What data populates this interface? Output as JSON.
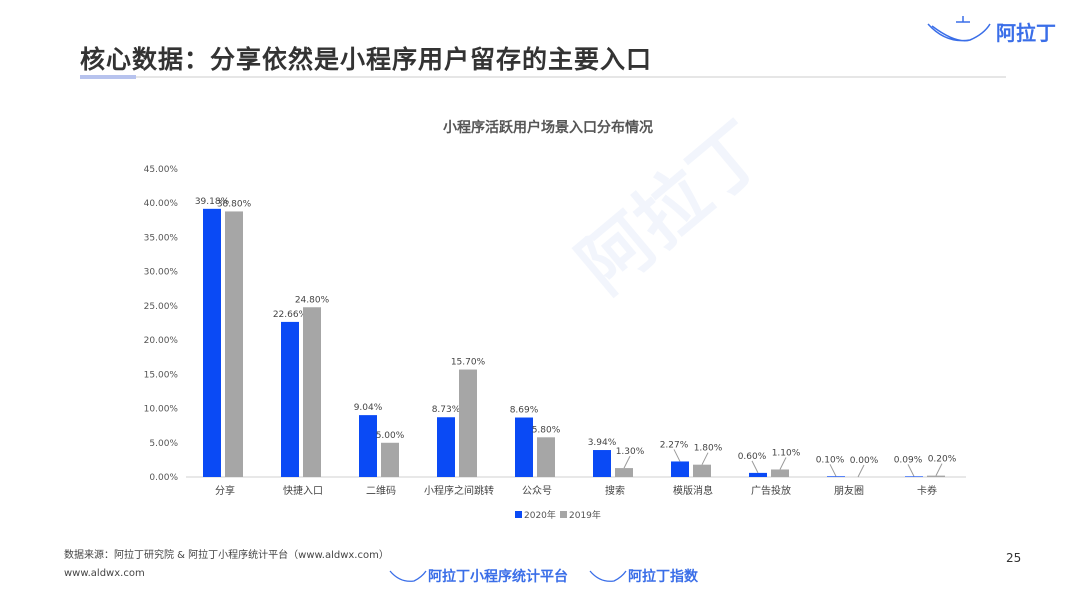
{
  "header": {
    "title": "核心数据：分享依然是小程序用户留存的主要入口",
    "logo_text": "阿拉丁"
  },
  "footer": {
    "source": "数据来源：阿拉丁研究院 & 阿拉丁小程序统计平台（www.aldwx.com）",
    "url": "www.aldwx.com",
    "page": "25",
    "logo1": "阿拉丁小程序统计平台",
    "logo2": "阿拉丁指数"
  },
  "colors": {
    "s2020": "#0a4af5",
    "s2019": "#a6a6a6"
  },
  "chart_data": {
    "type": "bar",
    "title": "小程序活跃用户场景入口分布情况",
    "categories": [
      "分享",
      "快捷入口",
      "二维码",
      "小程序之间跳转",
      "公众号",
      "搜索",
      "模版消息",
      "广告投放",
      "朋友圈",
      "卡券"
    ],
    "series": [
      {
        "name": "2020年",
        "values": [
          39.18,
          22.66,
          9.04,
          8.73,
          8.69,
          3.94,
          2.27,
          0.6,
          0.1,
          0.09
        ],
        "labels": [
          "39.18%",
          "22.66%",
          "9.04%",
          "8.73%",
          "8.69%",
          "3.94%",
          "2.27%",
          "0.60%",
          "0.10%",
          "0.09%"
        ]
      },
      {
        "name": "2019年",
        "values": [
          38.8,
          24.8,
          5.0,
          15.7,
          5.8,
          1.3,
          1.8,
          1.1,
          0.0,
          0.2
        ],
        "labels": [
          "38.80%",
          "24.80%",
          "5.00%",
          "15.70%",
          "5.80%",
          "1.30%",
          "1.80%",
          "1.10%",
          "0.00%",
          "0.20%"
        ]
      }
    ],
    "yticks": [
      "0.00%",
      "5.00%",
      "10.00%",
      "15.00%",
      "20.00%",
      "25.00%",
      "30.00%",
      "35.00%",
      "40.00%",
      "45.00%"
    ],
    "ylim": [
      0,
      45
    ],
    "legend": "bottom"
  }
}
